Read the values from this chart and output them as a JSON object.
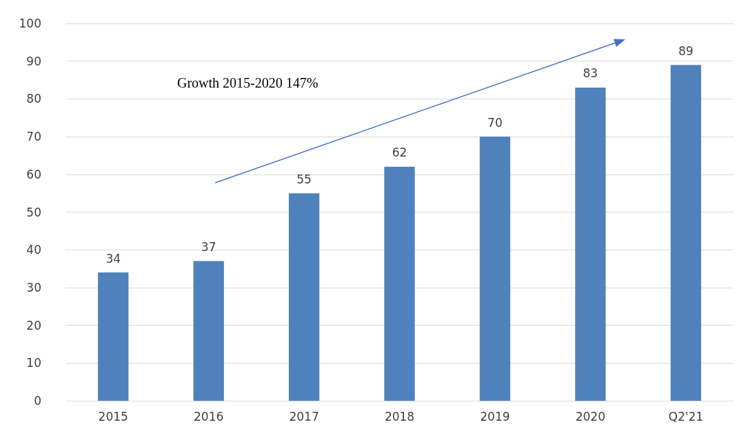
{
  "chart_data": {
    "type": "bar",
    "categories": [
      "2015",
      "2016",
      "2017",
      "2018",
      "2019",
      "2020",
      "Q2'21"
    ],
    "values": [
      34,
      37,
      55,
      62,
      70,
      83,
      89
    ],
    "color": "#4f81bd",
    "ylim": [
      0,
      100
    ],
    "yticks": [
      0,
      10,
      20,
      30,
      40,
      50,
      60,
      70,
      80,
      90,
      100
    ],
    "grid": "y",
    "data_labels": true,
    "annotations": [
      "Growth 2015-2020 147%"
    ]
  }
}
